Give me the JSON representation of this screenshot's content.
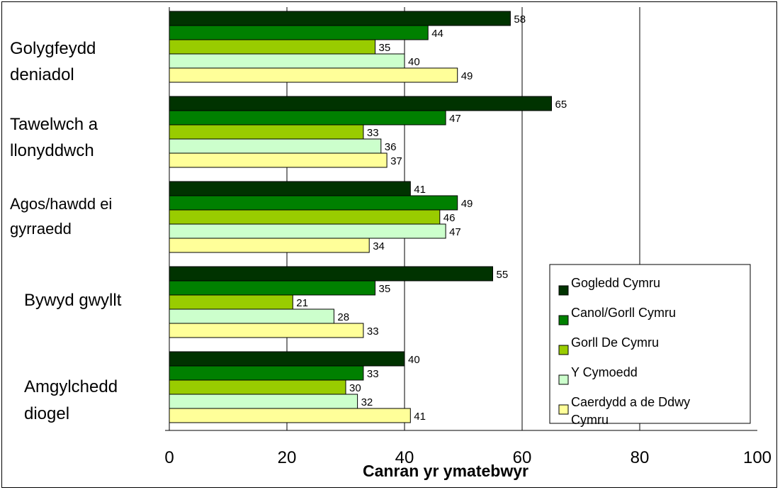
{
  "chart_data": {
    "type": "bar",
    "orientation": "horizontal",
    "title": "",
    "xlabel": "Canran yr ymatebwyr",
    "ylabel": "",
    "xlim": [
      0,
      100
    ],
    "x_ticks": [
      "0",
      "20",
      "40",
      "60",
      "80",
      "100"
    ],
    "grid": "vertical gridlines",
    "legend_position": "bottom-right",
    "categories": [
      [
        "Golygfeydd",
        "deniadol"
      ],
      [
        "Tawelwch a",
        "llonyddwch"
      ],
      [
        "Agos/hawdd ei",
        "gyrraedd"
      ],
      [
        "Bywyd gwyllt"
      ],
      [
        "Amgylchedd",
        "diogel"
      ]
    ],
    "series": [
      {
        "name": "Gogledd Cymru",
        "color": "#003300",
        "values": [
          58,
          65,
          41,
          55,
          40
        ]
      },
      {
        "name": "Canol/Gorll Cymru",
        "color": "#008000",
        "values": [
          44,
          47,
          49,
          35,
          33
        ]
      },
      {
        "name": "Gorll De Cymru",
        "color": "#99cc00",
        "values": [
          35,
          33,
          46,
          21,
          30
        ]
      },
      {
        "name": "Y Cymoedd",
        "color": "#ccffcc",
        "values": [
          40,
          36,
          47,
          28,
          32
        ]
      },
      {
        "name": "Caerdydd a de Ddwyrain Cymru",
        "color": "#ffff99",
        "values": [
          49,
          37,
          34,
          33,
          41
        ]
      }
    ],
    "legend_labels": [
      [
        "Gogledd Cymru"
      ],
      [
        "Canol/Gorll Cymru"
      ],
      [
        "Gorll De Cymru"
      ],
      [
        "Y Cymoedd"
      ],
      [
        "Caerdydd a de Ddwy",
        "Cymru"
      ]
    ]
  }
}
